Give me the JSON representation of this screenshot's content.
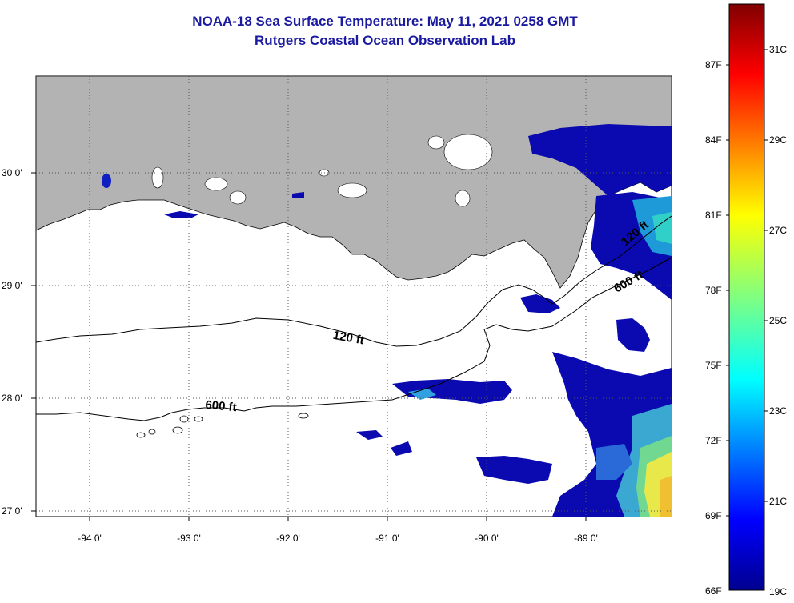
{
  "header": {
    "title_line1": "NOAA-18 Sea Surface Temperature:  May 11, 2021 0258 GMT",
    "title_line2": "Rutgers Coastal Ocean Observation Lab"
  },
  "axes": {
    "lon_labels": [
      "-94 0'",
      "-93 0'",
      "-92 0'",
      "-91 0'",
      "-90 0'",
      "-89 0'"
    ],
    "lat_labels": [
      "30 0'",
      "29 0'",
      "28 0'",
      "27 0'"
    ]
  },
  "contours": {
    "shallow_label": "120 ft",
    "deep_label": "600 ft",
    "deep_label_east": "600 ft",
    "shallow_label_east": "120 ft"
  },
  "colorbar": {
    "f_labels": [
      "87F",
      "84F",
      "81F",
      "78F",
      "75F",
      "72F",
      "69F",
      "66F"
    ],
    "c_labels": [
      "31C",
      "29C",
      "27C",
      "25C",
      "23C",
      "21C",
      "19C"
    ]
  },
  "colors": {
    "land": "#b3b3b3",
    "cold": "#0a0aa0",
    "title": "#1a1aa0"
  }
}
